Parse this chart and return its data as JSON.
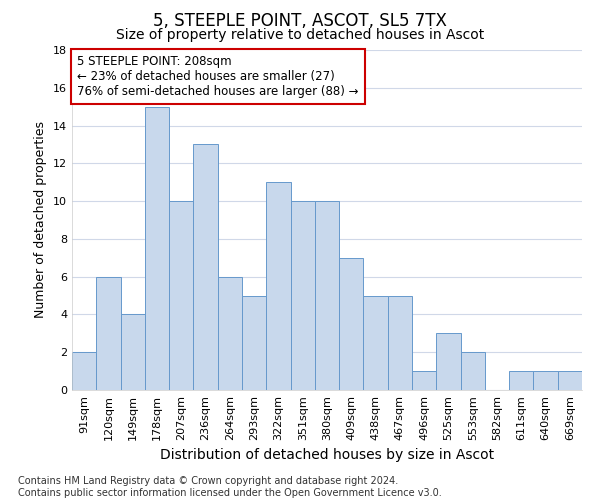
{
  "title": "5, STEEPLE POINT, ASCOT, SL5 7TX",
  "subtitle": "Size of property relative to detached houses in Ascot",
  "xlabel": "Distribution of detached houses by size in Ascot",
  "ylabel": "Number of detached properties",
  "categories": [
    "91sqm",
    "120sqm",
    "149sqm",
    "178sqm",
    "207sqm",
    "236sqm",
    "264sqm",
    "293sqm",
    "322sqm",
    "351sqm",
    "380sqm",
    "409sqm",
    "438sqm",
    "467sqm",
    "496sqm",
    "525sqm",
    "553sqm",
    "582sqm",
    "611sqm",
    "640sqm",
    "669sqm"
  ],
  "values": [
    2,
    6,
    4,
    15,
    10,
    13,
    6,
    5,
    11,
    10,
    10,
    7,
    5,
    5,
    1,
    3,
    2,
    0,
    1,
    1,
    1
  ],
  "bar_color": "#c8d8ec",
  "bar_edge_color": "#6699cc",
  "background_color": "#ffffff",
  "grid_color": "#d0d8e8",
  "ylim": [
    0,
    18
  ],
  "yticks": [
    0,
    2,
    4,
    6,
    8,
    10,
    12,
    14,
    16,
    18
  ],
  "annotation_text": "5 STEEPLE POINT: 208sqm\n← 23% of detached houses are smaller (27)\n76% of semi-detached houses are larger (88) →",
  "annotation_box_color": "#ffffff",
  "annotation_box_edge_color": "#cc0000",
  "footnote": "Contains HM Land Registry data © Crown copyright and database right 2024.\nContains public sector information licensed under the Open Government Licence v3.0.",
  "title_fontsize": 12,
  "subtitle_fontsize": 10,
  "xlabel_fontsize": 10,
  "ylabel_fontsize": 9,
  "tick_fontsize": 8,
  "annot_fontsize": 8.5,
  "footnote_fontsize": 7
}
